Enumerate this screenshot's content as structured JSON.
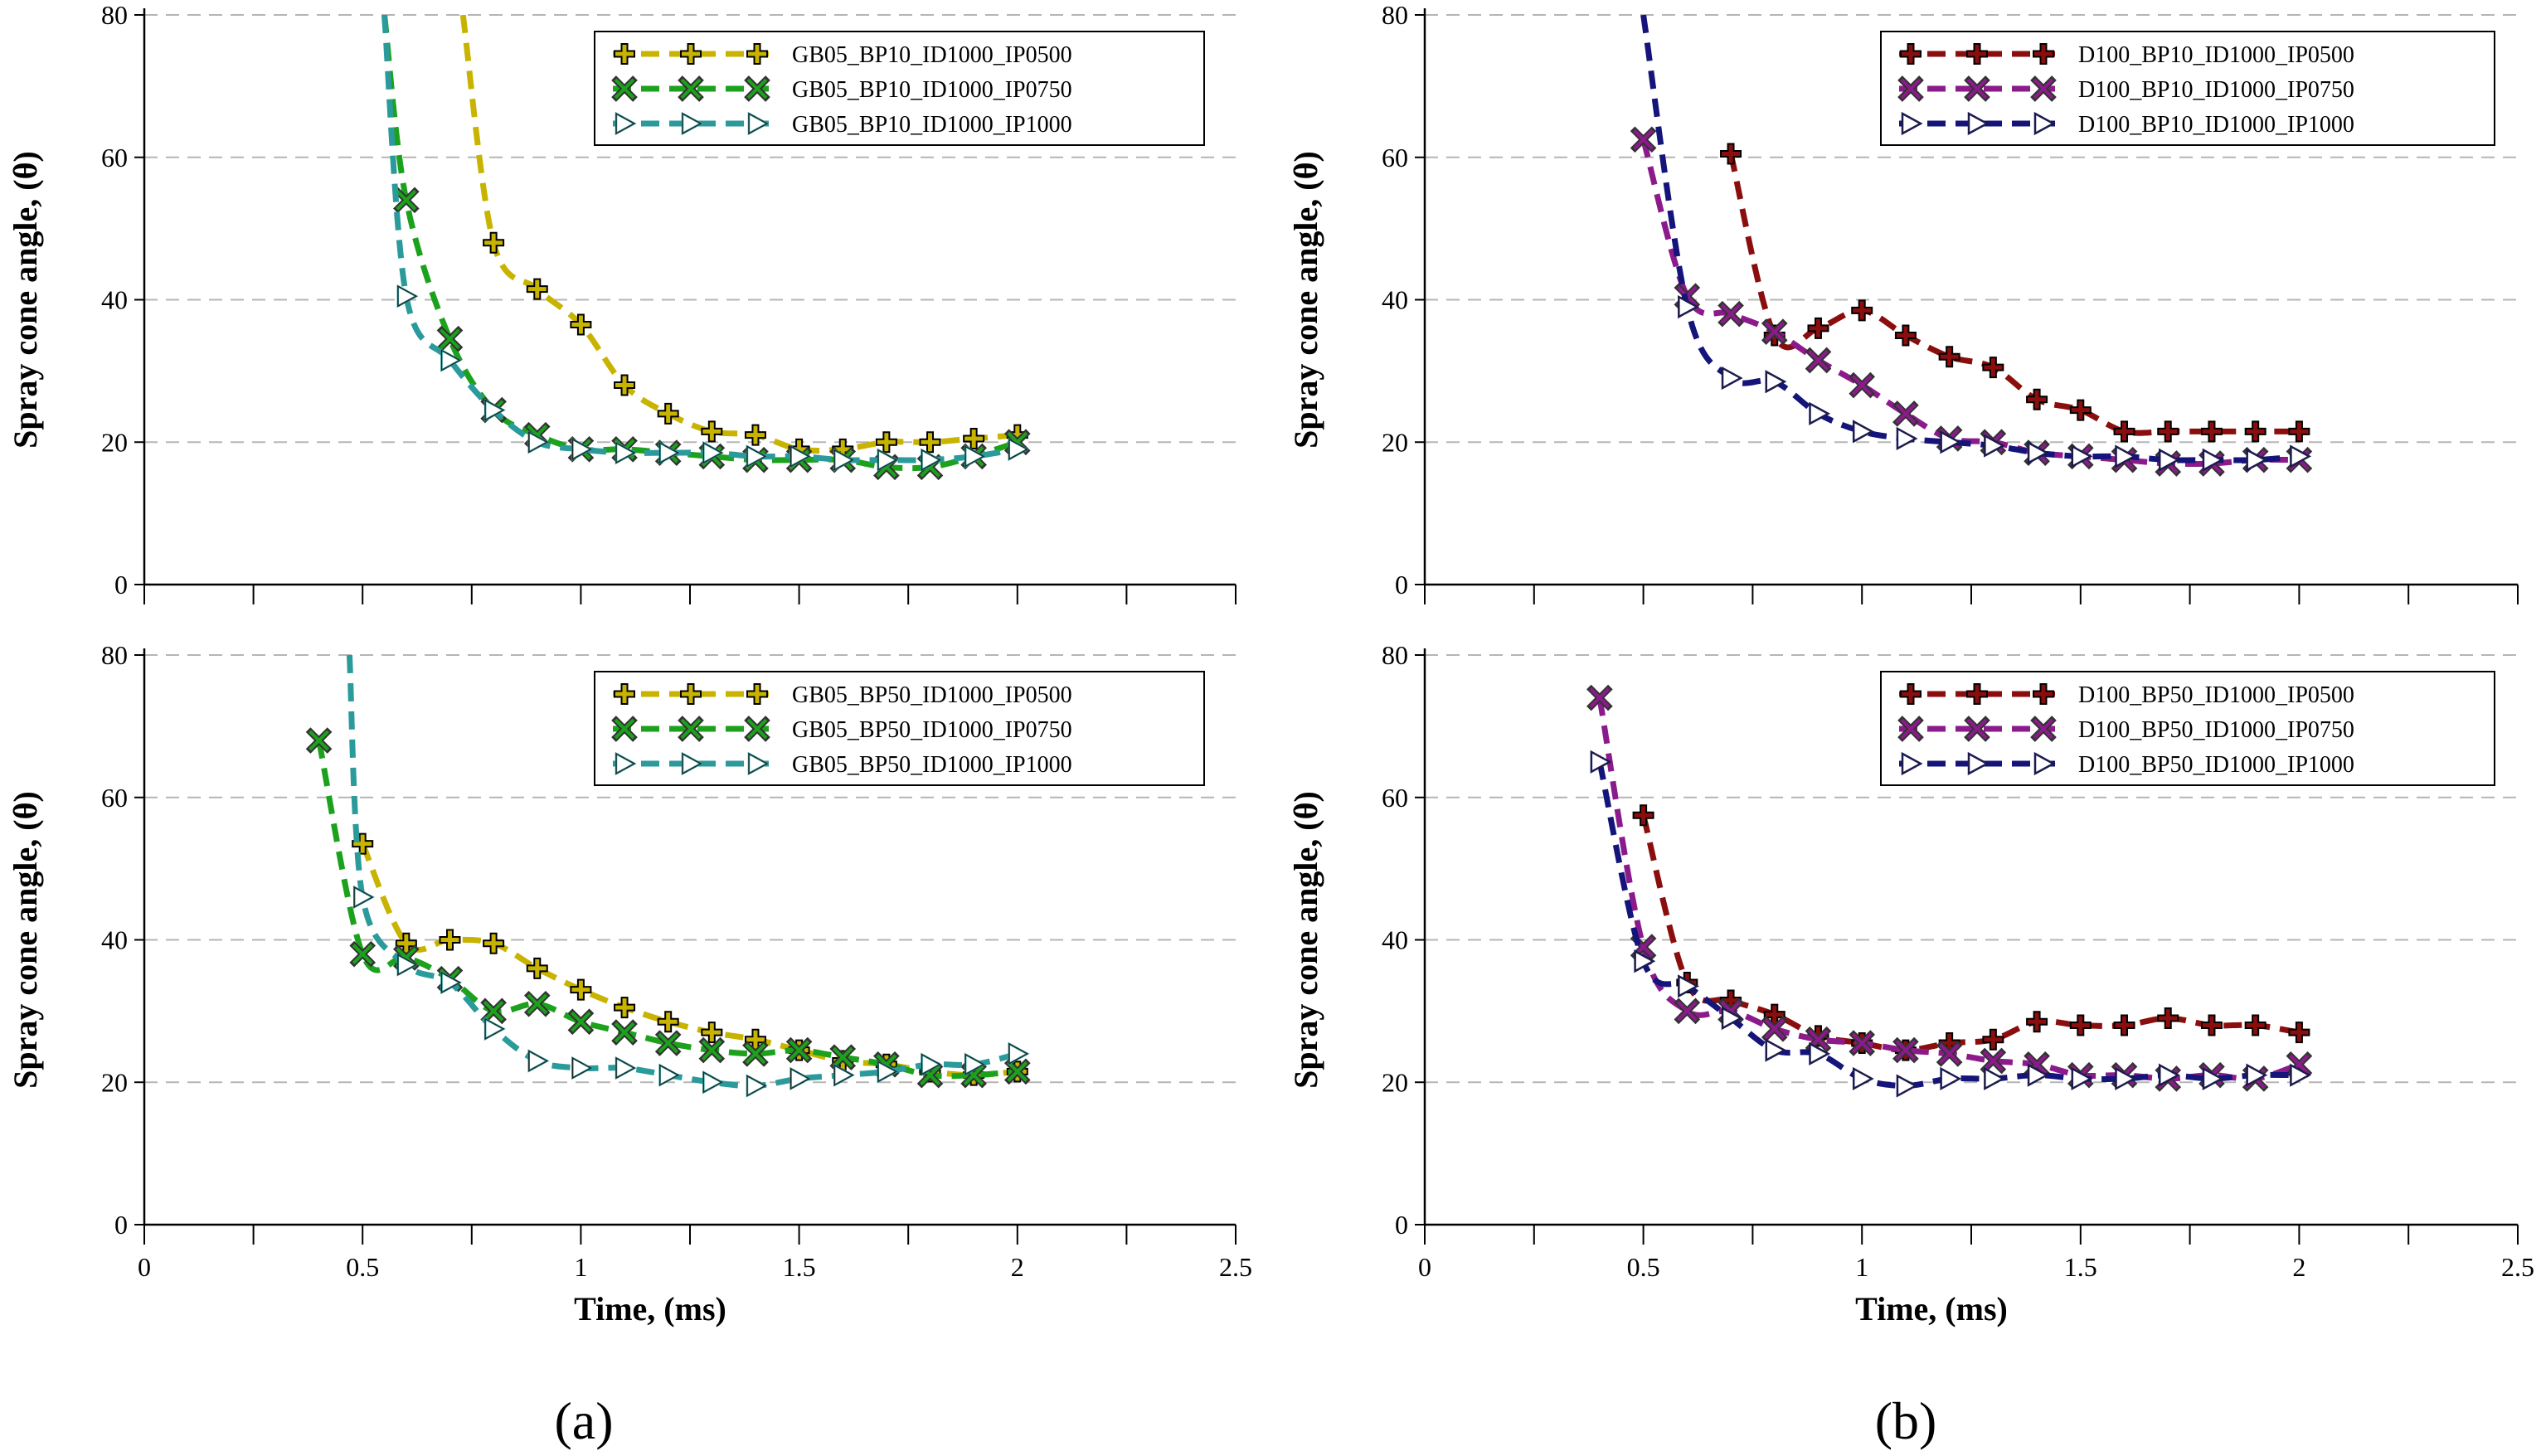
{
  "panel_labels": [
    "(a)",
    "(b)"
  ],
  "colors": {
    "gb_ip0500": "#c8b400",
    "gb_ip0750": "#1ca11c",
    "gb_ip1000": "#2a9a9a",
    "d_ip0500": "#8b0e0e",
    "d_ip0750": "#8b1a8b",
    "d_ip1000": "#14147a"
  },
  "chart_data": [
    {
      "type": "line",
      "panel": "a-top",
      "xlabel": "",
      "ylabel": "Spray cone angle, (θ)",
      "xlim": [
        0,
        2.5
      ],
      "ylim": [
        0,
        80
      ],
      "yticks": [
        "0",
        "20",
        "40",
        "60",
        "80"
      ],
      "xticks": [],
      "legend_position": "top-right",
      "series": [
        {
          "name": "GB05_BP10_ID1000_IP0500",
          "color": "#c8b400",
          "marker": "plus",
          "x": [
            0.8,
            0.9,
            1.0,
            1.1,
            1.2,
            1.3,
            1.4,
            1.5,
            1.6,
            1.7,
            1.8,
            1.9,
            2.0
          ],
          "y": [
            48,
            41.5,
            36.5,
            28,
            24,
            21.5,
            21,
            19,
            19,
            20,
            20,
            20.5,
            21
          ],
          "lead": [
            [
              0.73,
              80
            ]
          ]
        },
        {
          "name": "GB05_BP10_ID1000_IP0750",
          "color": "#1ca11c",
          "marker": "x",
          "x": [
            0.6,
            0.7,
            0.8,
            0.9,
            1.0,
            1.1,
            1.2,
            1.3,
            1.4,
            1.5,
            1.6,
            1.7,
            1.8,
            1.9,
            2.0
          ],
          "y": [
            54,
            34.5,
            24.5,
            21,
            19,
            19,
            18.5,
            18,
            17.5,
            17.5,
            17.5,
            16.5,
            16.5,
            18,
            20
          ],
          "lead": [
            [
              0.55,
              80
            ]
          ]
        },
        {
          "name": "GB05_BP10_ID1000_IP1000",
          "color": "#2a9a9a",
          "marker": "tri",
          "x": [
            0.6,
            0.7,
            0.8,
            0.9,
            1.0,
            1.1,
            1.2,
            1.3,
            1.4,
            1.5,
            1.6,
            1.7,
            1.8,
            1.9,
            2.0
          ],
          "y": [
            40.5,
            31.5,
            24.5,
            20,
            19,
            18.5,
            18.5,
            18.5,
            18,
            18,
            17.5,
            17.5,
            17.5,
            18,
            19
          ],
          "lead": [
            [
              0.55,
              80
            ]
          ]
        }
      ]
    },
    {
      "type": "line",
      "panel": "b-top",
      "xlabel": "",
      "ylabel": "Spray cone angle, (θ)",
      "xlim": [
        0,
        2.5
      ],
      "ylim": [
        0,
        80
      ],
      "yticks": [
        "0",
        "20",
        "40",
        "60",
        "80"
      ],
      "xticks": [],
      "legend_position": "top-right",
      "series": [
        {
          "name": "D100_BP10_ID1000_IP0500",
          "color": "#8b0e0e",
          "marker": "plus",
          "x": [
            0.7,
            0.8,
            0.9,
            1.0,
            1.1,
            1.2,
            1.3,
            1.4,
            1.5,
            1.6,
            1.7,
            1.8,
            1.9,
            2.0
          ],
          "y": [
            60.5,
            35,
            36,
            38.5,
            35,
            32,
            30.5,
            26,
            24.5,
            21.5,
            21.5,
            21.5,
            21.5,
            21.5
          ],
          "lead": []
        },
        {
          "name": "D100_BP10_ID1000_IP0750",
          "color": "#8b1a8b",
          "marker": "x",
          "x": [
            0.5,
            0.6,
            0.7,
            0.8,
            0.9,
            1.0,
            1.1,
            1.2,
            1.3,
            1.4,
            1.5,
            1.6,
            1.7,
            1.8,
            1.9,
            2.0
          ],
          "y": [
            62.5,
            40.5,
            38,
            35.5,
            31.5,
            28,
            24,
            20.5,
            20,
            18.5,
            18,
            17.5,
            17,
            17,
            17.5,
            17.5
          ],
          "lead": []
        },
        {
          "name": "D100_BP10_ID1000_IP1000",
          "color": "#14147a",
          "marker": "tri",
          "x": [
            0.6,
            0.7,
            0.8,
            0.9,
            1.0,
            1.1,
            1.2,
            1.3,
            1.4,
            1.5,
            1.6,
            1.7,
            1.8,
            1.9,
            2.0
          ],
          "y": [
            39,
            29,
            28.5,
            24,
            21.5,
            20.5,
            20,
            19.5,
            18.5,
            18,
            18,
            17.5,
            17.5,
            17.5,
            18
          ],
          "lead": [
            [
              0.5,
              80
            ]
          ]
        }
      ]
    },
    {
      "type": "line",
      "panel": "a-bottom",
      "xlabel": "Time, (ms)",
      "ylabel": "Spray cone angle, (θ)",
      "xlim": [
        0,
        2.5
      ],
      "ylim": [
        0,
        80
      ],
      "yticks": [
        "0",
        "20",
        "40",
        "60",
        "80"
      ],
      "xticks": [
        "0",
        "0.5",
        "1",
        "1.5",
        "2",
        "2.5"
      ],
      "legend_position": "top-right",
      "series": [
        {
          "name": "GB05_BP50_ID1000_IP0500",
          "color": "#c8b400",
          "marker": "plus",
          "x": [
            0.5,
            0.6,
            0.7,
            0.8,
            0.9,
            1.0,
            1.1,
            1.2,
            1.3,
            1.4,
            1.5,
            1.6,
            1.7,
            1.8,
            1.9,
            2.0
          ],
          "y": [
            53.5,
            39.5,
            40,
            39.5,
            36,
            33,
            30.5,
            28.5,
            27,
            26,
            24.5,
            23,
            22.5,
            21.5,
            21,
            21.5
          ],
          "lead": []
        },
        {
          "name": "GB05_BP50_ID1000_IP0750",
          "color": "#1ca11c",
          "marker": "x",
          "x": [
            0.4,
            0.5,
            0.6,
            0.7,
            0.8,
            0.9,
            1.0,
            1.1,
            1.2,
            1.3,
            1.4,
            1.5,
            1.6,
            1.7,
            1.8,
            1.9,
            2.0
          ],
          "y": [
            68,
            38,
            37.5,
            34.5,
            30,
            31,
            28.5,
            27,
            25.5,
            24.5,
            24,
            24.5,
            23.5,
            22.5,
            21,
            21,
            21.5
          ],
          "lead": []
        },
        {
          "name": "GB05_BP50_ID1000_IP1000",
          "color": "#2a9a9a",
          "marker": "tri",
          "x": [
            0.5,
            0.6,
            0.7,
            0.8,
            0.9,
            1.0,
            1.1,
            1.2,
            1.3,
            1.4,
            1.5,
            1.6,
            1.7,
            1.8,
            1.9,
            2.0
          ],
          "y": [
            46,
            36.5,
            34,
            27.5,
            23,
            22,
            22,
            21,
            20,
            19.5,
            20.5,
            21,
            21.5,
            22.5,
            22.5,
            24
          ],
          "lead": [
            [
              0.47,
              80
            ]
          ]
        }
      ]
    },
    {
      "type": "line",
      "panel": "b-bottom",
      "xlabel": "Time, (ms)",
      "ylabel": "Spray cone angle, (θ)",
      "xlim": [
        0,
        2.5
      ],
      "ylim": [
        0,
        80
      ],
      "yticks": [
        "0",
        "20",
        "40",
        "60",
        "80"
      ],
      "xticks": [
        "0",
        "0.5",
        "1",
        "1.5",
        "2",
        "2.5"
      ],
      "legend_position": "top-right",
      "series": [
        {
          "name": "D100_BP50_ID1000_IP0500",
          "color": "#8b0e0e",
          "marker": "plus",
          "x": [
            0.5,
            0.6,
            0.7,
            0.8,
            0.9,
            1.0,
            1.1,
            1.2,
            1.3,
            1.4,
            1.5,
            1.6,
            1.7,
            1.8,
            1.9,
            2.0
          ],
          "y": [
            57.5,
            34,
            31.5,
            29.5,
            26.5,
            25.5,
            24.5,
            25.5,
            26,
            28.5,
            28,
            28,
            29,
            28,
            28,
            27
          ],
          "lead": []
        },
        {
          "name": "D100_BP50_ID1000_IP0750",
          "color": "#8b1a8b",
          "marker": "x",
          "x": [
            0.4,
            0.5,
            0.6,
            0.7,
            0.8,
            0.9,
            1.0,
            1.1,
            1.2,
            1.3,
            1.4,
            1.5,
            1.6,
            1.7,
            1.8,
            1.9,
            2.0
          ],
          "y": [
            74,
            39,
            30,
            30,
            27.5,
            26,
            25.5,
            24.5,
            24,
            23,
            22.5,
            21,
            21,
            20.5,
            21,
            20.5,
            22.5
          ],
          "lead": []
        },
        {
          "name": "D100_BP50_ID1000_IP1000",
          "color": "#14147a",
          "marker": "tri",
          "x": [
            0.4,
            0.5,
            0.6,
            0.7,
            0.8,
            0.9,
            1.0,
            1.1,
            1.2,
            1.3,
            1.4,
            1.5,
            1.6,
            1.7,
            1.8,
            1.9,
            2.0
          ],
          "y": [
            65,
            37,
            33.5,
            29,
            24.5,
            24,
            20.5,
            19.5,
            20.5,
            20.5,
            21,
            20.5,
            20.5,
            21,
            20.5,
            21,
            21
          ],
          "lead": []
        }
      ]
    }
  ]
}
